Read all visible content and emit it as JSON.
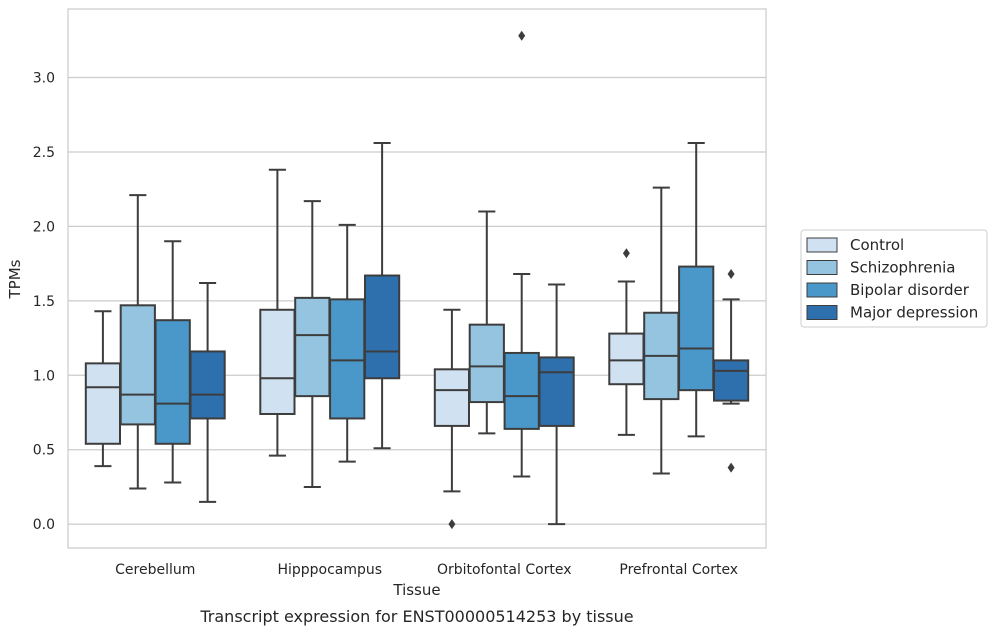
{
  "chart_data": {
    "type": "boxplot",
    "caption": "Transcript expression for ENST00000514253 by tissue",
    "xlabel": "Tissue",
    "ylabel": "TPMs",
    "ylim": [
      -0.16,
      3.46
    ],
    "yticks": [
      "0.0",
      "0.5",
      "1.0",
      "1.5",
      "2.0",
      "2.5",
      "3.0"
    ],
    "grid": "horizontal",
    "legend_position": "right",
    "categories": [
      "Cerebellum",
      "Hipppocampus",
      "Orbitofontal Cortex",
      "Prefrontal Cortex"
    ],
    "series": [
      {
        "name": "Control",
        "color": "#d0e1f2",
        "boxes": [
          {
            "whislo": 0.39,
            "q1": 0.54,
            "med": 0.92,
            "q3": 1.08,
            "whishi": 1.43,
            "fliers": []
          },
          {
            "whislo": 0.46,
            "q1": 0.74,
            "med": 0.98,
            "q3": 1.44,
            "whishi": 2.38,
            "fliers": []
          },
          {
            "whislo": 0.22,
            "q1": 0.66,
            "med": 0.9,
            "q3": 1.04,
            "whishi": 1.44,
            "fliers": [
              0.0
            ]
          },
          {
            "whislo": 0.6,
            "q1": 0.94,
            "med": 1.1,
            "q3": 1.28,
            "whishi": 1.63,
            "fliers": [
              1.82
            ]
          }
        ]
      },
      {
        "name": "Schizophrenia",
        "color": "#94c4df",
        "boxes": [
          {
            "whislo": 0.24,
            "q1": 0.67,
            "med": 0.87,
            "q3": 1.47,
            "whishi": 2.21,
            "fliers": []
          },
          {
            "whislo": 0.25,
            "q1": 0.86,
            "med": 1.27,
            "q3": 1.52,
            "whishi": 2.17,
            "fliers": []
          },
          {
            "whislo": 0.61,
            "q1": 0.82,
            "med": 1.06,
            "q3": 1.34,
            "whishi": 2.1,
            "fliers": []
          },
          {
            "whislo": 0.34,
            "q1": 0.84,
            "med": 1.13,
            "q3": 1.42,
            "whishi": 2.26,
            "fliers": []
          }
        ]
      },
      {
        "name": "Bipolar disorder",
        "color": "#4a98c9",
        "boxes": [
          {
            "whislo": 0.28,
            "q1": 0.54,
            "med": 0.81,
            "q3": 1.37,
            "whishi": 1.9,
            "fliers": []
          },
          {
            "whislo": 0.42,
            "q1": 0.71,
            "med": 1.1,
            "q3": 1.51,
            "whishi": 2.01,
            "fliers": []
          },
          {
            "whislo": 0.32,
            "q1": 0.64,
            "med": 0.86,
            "q3": 1.15,
            "whishi": 1.68,
            "fliers": [
              3.28
            ]
          },
          {
            "whislo": 0.59,
            "q1": 0.9,
            "med": 1.18,
            "q3": 1.73,
            "whishi": 2.56,
            "fliers": []
          }
        ]
      },
      {
        "name": "Major depression",
        "color": "#2e6fad",
        "boxes": [
          {
            "whislo": 0.15,
            "q1": 0.71,
            "med": 0.87,
            "q3": 1.16,
            "whishi": 1.62,
            "fliers": []
          },
          {
            "whislo": 0.51,
            "q1": 0.98,
            "med": 1.16,
            "q3": 1.67,
            "whishi": 2.56,
            "fliers": []
          },
          {
            "whislo": 0.0,
            "q1": 0.66,
            "med": 1.02,
            "q3": 1.12,
            "whishi": 1.61,
            "fliers": []
          },
          {
            "whislo": 0.81,
            "q1": 0.83,
            "med": 1.03,
            "q3": 1.1,
            "whishi": 1.51,
            "fliers": [
              1.68,
              0.38
            ]
          }
        ]
      }
    ]
  }
}
